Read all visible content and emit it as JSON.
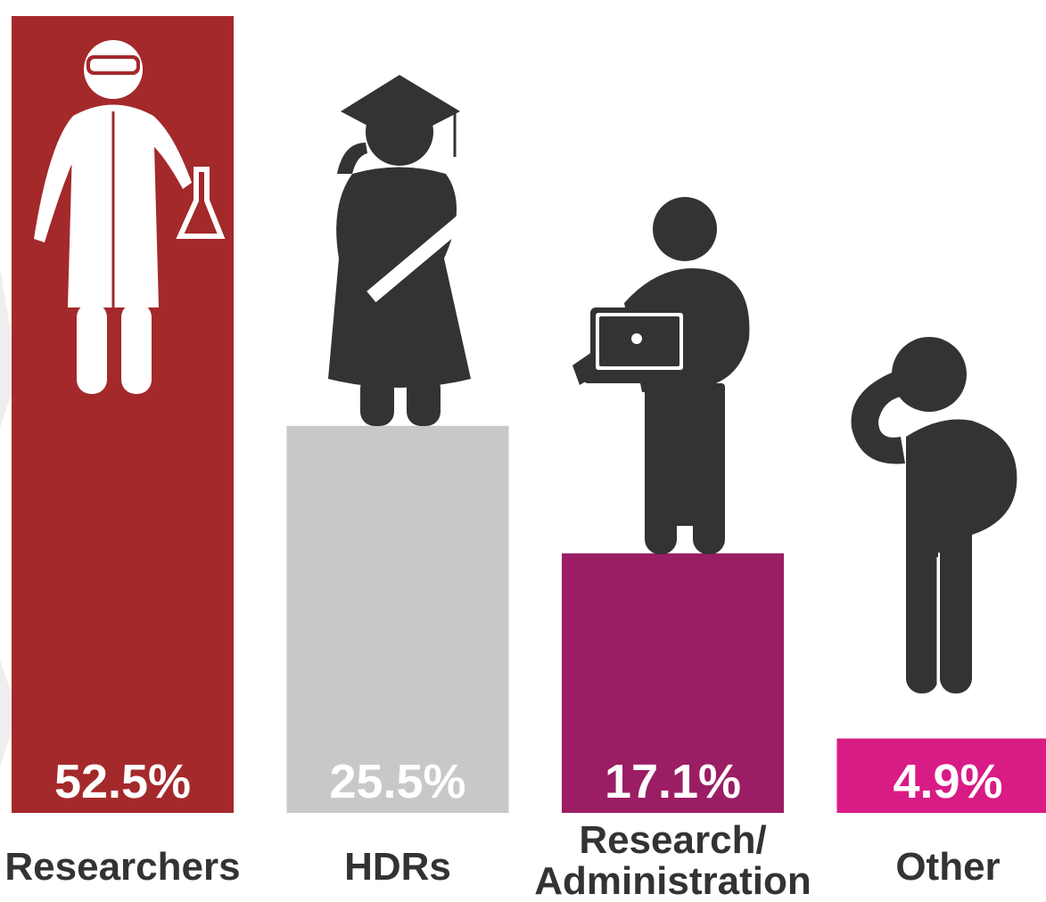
{
  "chart_data": {
    "type": "bar",
    "categories": [
      "Researchers",
      "HDRs",
      "Research/ Administration",
      "Other"
    ],
    "values": [
      52.5,
      25.5,
      17.1,
      4.9
    ],
    "value_labels": [
      "52.5%",
      "25.5%",
      "17.1%",
      "4.9%"
    ],
    "colors": [
      "#a4292b",
      "#c8c8c8",
      "#9b1d64",
      "#d91b85"
    ]
  }
}
